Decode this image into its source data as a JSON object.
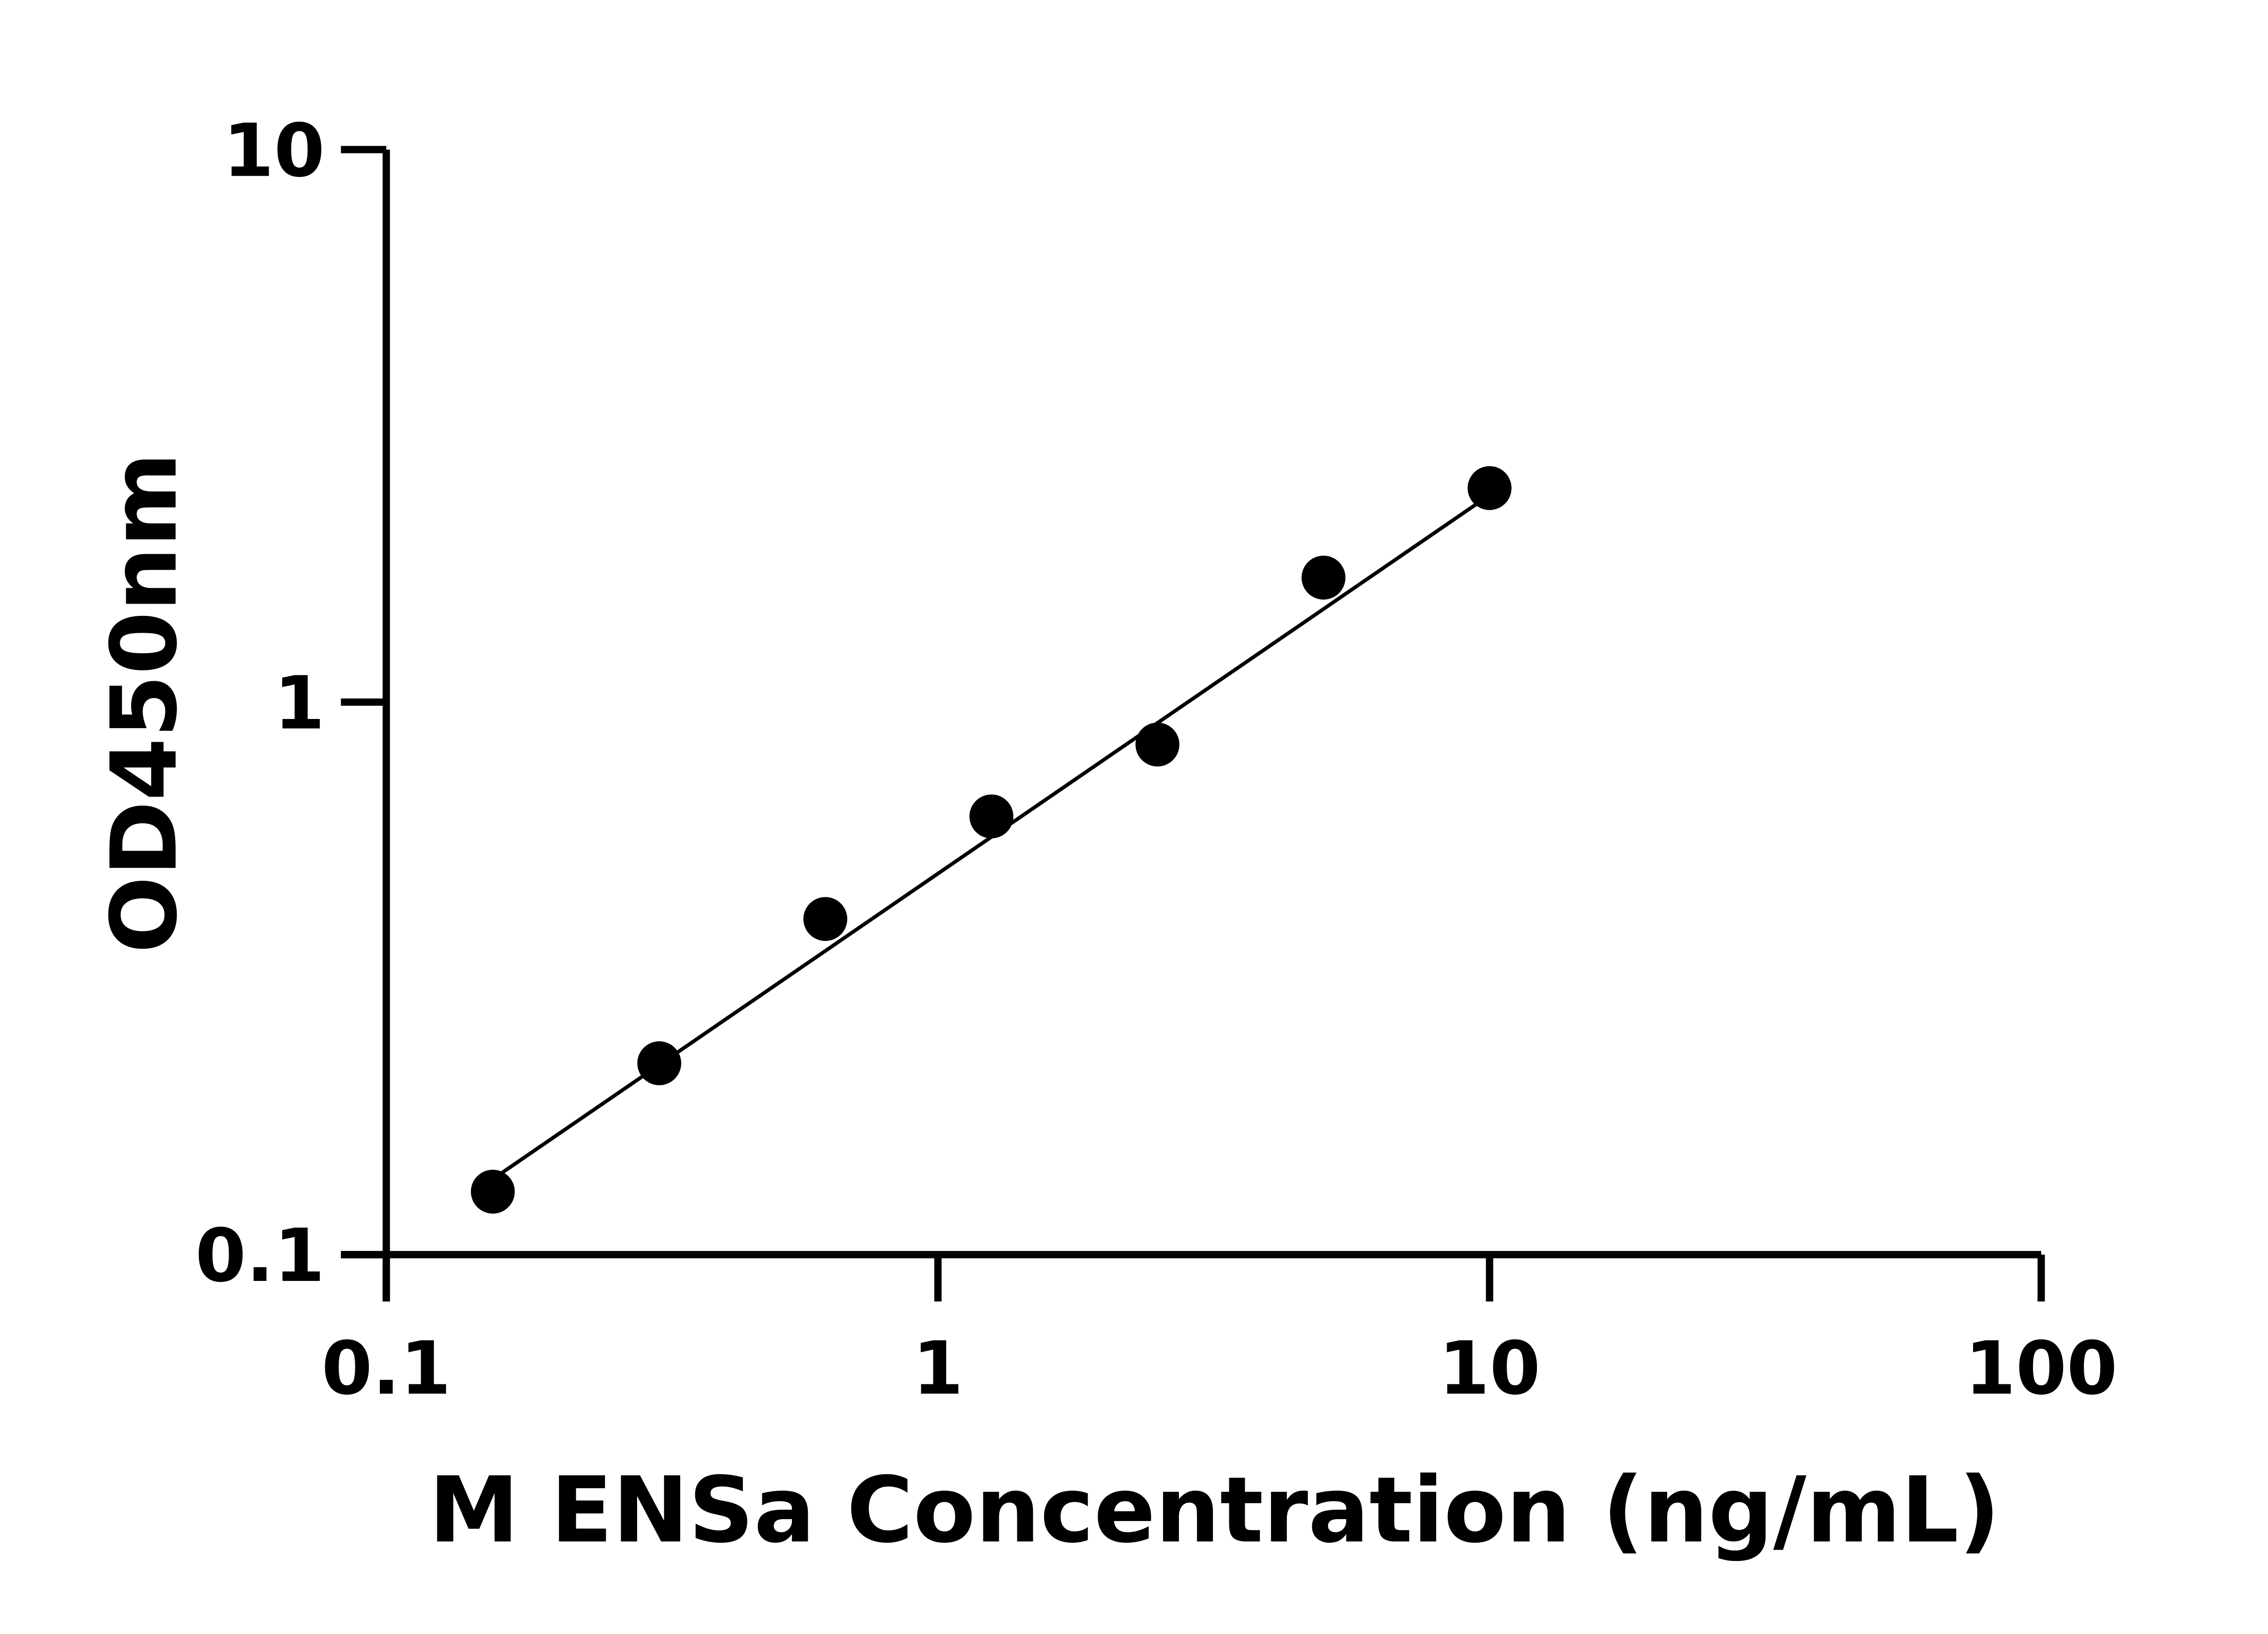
{
  "chart_data": {
    "type": "scatter",
    "title": "",
    "xlabel": "M ENSa Concentration (ng/mL)",
    "ylabel": "OD450nm",
    "x_scale": "log",
    "y_scale": "log",
    "xlim": [
      0.1,
      100
    ],
    "ylim": [
      0.1,
      10
    ],
    "x_ticks": [
      "0.1",
      "1",
      "10",
      "100"
    ],
    "y_ticks": [
      "0.1",
      "1",
      "10"
    ],
    "grid": false,
    "series": [
      {
        "x": [
          0.156,
          0.3125,
          0.625,
          1.25,
          2.5,
          5,
          10
        ],
        "y": [
          0.13,
          0.222,
          0.405,
          0.621,
          0.838,
          1.68,
          2.44
        ]
      }
    ],
    "fit_line": {
      "x": [
        0.156,
        10
      ],
      "y": [
        0.137,
        2.37
      ]
    },
    "colors": {
      "points": "#000000",
      "line": "#000000",
      "axes": "#000000"
    }
  }
}
